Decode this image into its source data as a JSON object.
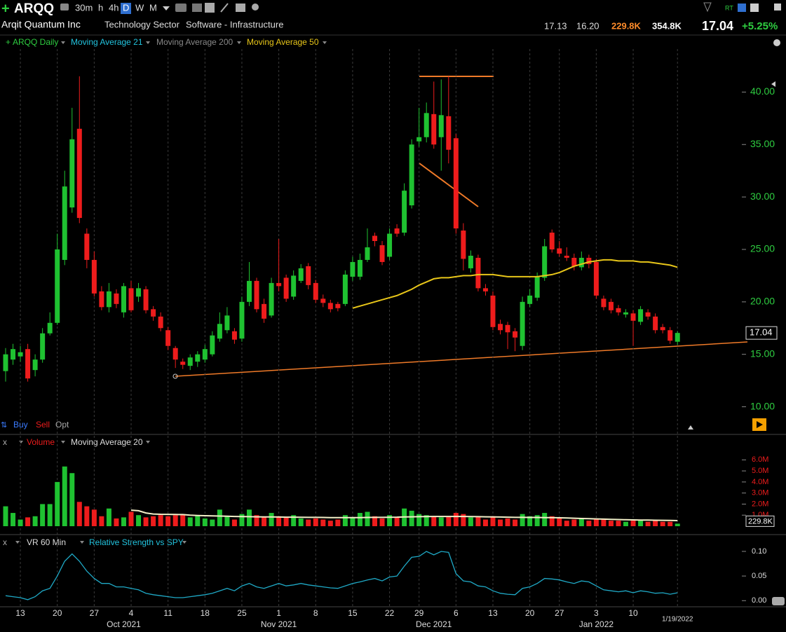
{
  "header": {
    "symbol": "ARQQ",
    "timeframes": [
      "30m",
      "h",
      "4h",
      "D",
      "W",
      "M"
    ],
    "company": "Arqit Quantum Inc",
    "sector": "Technology Sector",
    "industry": "Software - Infrastructure",
    "high_low": [
      "17.13",
      "16.20"
    ],
    "volume": "229.8K",
    "avg_volume": "354.8K",
    "last": "17.04",
    "change": "+5.25%"
  },
  "legend": {
    "ma21": "Moving Average 21",
    "ma200": "Moving Average 200"
  },
  "trade_buttons": [
    "Buy",
    "Sell",
    "Opt"
  ],
  "chart_data": [
    {
      "type": "candlestick",
      "title": "ARQQ Daily",
      "categories": [
        null,
        null,
        "13",
        null,
        null,
        null,
        null,
        "20",
        null,
        null,
        null,
        null,
        "27",
        null,
        null,
        null,
        null,
        "4",
        null,
        null,
        null,
        null,
        "11",
        null,
        null,
        null,
        null,
        "18",
        null,
        null,
        null,
        null,
        "25",
        null,
        null,
        null,
        null,
        "1",
        null,
        null,
        null,
        null,
        "8",
        null,
        null,
        null,
        null,
        "15",
        null,
        null,
        null,
        null,
        "22",
        null,
        null,
        null,
        "29",
        null,
        null,
        null,
        null,
        "6",
        null,
        null,
        null,
        null,
        "13",
        null,
        null,
        null,
        null,
        "20",
        null,
        null,
        null,
        "27",
        null,
        null,
        null,
        null,
        "3",
        null,
        null,
        null,
        null,
        "10",
        null,
        null,
        null,
        null,
        null,
        "1/19/2022"
      ],
      "months": [
        null,
        null,
        null,
        null,
        null,
        null,
        null,
        null,
        null,
        null,
        null,
        null,
        null,
        null,
        null,
        null,
        "Oct 2021",
        null,
        null,
        null,
        null,
        null,
        null,
        null,
        null,
        null,
        null,
        null,
        null,
        null,
        null,
        null,
        null,
        null,
        null,
        null,
        null,
        "Nov 2021",
        null,
        null,
        null,
        null,
        null,
        null,
        null,
        null,
        null,
        null,
        null,
        null,
        null,
        null,
        null,
        null,
        null,
        null,
        null,
        null,
        "Dec 2021",
        null,
        null,
        null,
        null,
        null,
        null,
        null,
        null,
        null,
        null,
        null,
        null,
        null,
        null,
        null,
        null,
        null,
        null,
        null,
        null,
        null,
        "Jan 2022",
        null,
        null,
        null,
        null,
        null,
        null,
        null,
        null,
        null,
        null,
        null
      ],
      "open": [
        13.4,
        14.5,
        14.8,
        15.5,
        13.5,
        14.5,
        17.0,
        18.0,
        24.0,
        29.0,
        36.5,
        26.5,
        24.0,
        21.0,
        19.5,
        20.8,
        19.0,
        21.3,
        20.5,
        21.2,
        19.3,
        18.6,
        17.3,
        15.6,
        14.3,
        13.9,
        14.3,
        14.5,
        15.0,
        16.5,
        17.3,
        17.2,
        16.5,
        20.0,
        22.0,
        19.8,
        18.7,
        21.8,
        22.3,
        20.5,
        22.0,
        23.4,
        21.8,
        20.3,
        19.9,
        19.8,
        19.8,
        22.4,
        22.4,
        24.0,
        26.3,
        25.4,
        24.3,
        27.0,
        26.6,
        29.2,
        35.3,
        35.7,
        37.9,
        35.7,
        37.7,
        35.6,
        26.8,
        23.2,
        24.2,
        21.3,
        20.6,
        17.9,
        17.8,
        17.2,
        15.8,
        19.8,
        20.4,
        22.3,
        26.6,
        25.1,
        24.4,
        24.2,
        23.3,
        24.2,
        23.8,
        20.3,
        20.0,
        19.4,
        18.8,
        18.9,
        18.1,
        19.0,
        18.6,
        17.6,
        17.3,
        16.2
      ],
      "high": [
        15.6,
        16.0,
        15.8,
        16.0,
        15.0,
        17.5,
        19.0,
        26.5,
        32.5,
        38.5,
        41.5,
        27.0,
        24.8,
        21.5,
        21.8,
        21.2,
        21.8,
        22.0,
        21.8,
        21.5,
        19.6,
        19.0,
        17.6,
        15.8,
        14.6,
        15.0,
        15.3,
        15.9,
        17.2,
        19.0,
        19.5,
        17.5,
        20.5,
        23.8,
        22.3,
        20.3,
        22.3,
        26.0,
        22.6,
        23.0,
        23.6,
        23.7,
        22.1,
        20.7,
        20.2,
        20.0,
        23.0,
        24.3,
        24.6,
        27.0,
        26.6,
        25.8,
        27.0,
        27.4,
        31.3,
        35.5,
        38.5,
        39.0,
        41.0,
        41.2,
        41.5,
        36.0,
        27.5,
        24.9,
        24.5,
        21.7,
        21.0,
        18.3,
        18.1,
        17.5,
        20.5,
        21.2,
        22.8,
        26.0,
        26.9,
        25.8,
        25.2,
        24.6,
        24.8,
        24.5,
        24.1,
        20.6,
        20.3,
        19.7,
        19.3,
        19.2,
        19.6,
        19.3,
        18.9,
        17.9,
        17.6,
        17.2
      ],
      "low": [
        12.4,
        14.0,
        14.3,
        12.4,
        12.9,
        14.2,
        16.8,
        17.8,
        23.5,
        28.5,
        27.5,
        23.2,
        20.5,
        19.2,
        19.0,
        19.4,
        18.5,
        19.0,
        20.0,
        18.9,
        18.2,
        17.2,
        15.4,
        13.7,
        13.6,
        13.5,
        13.8,
        14.2,
        14.8,
        16.2,
        17.0,
        16.0,
        16.2,
        19.6,
        19.0,
        18.0,
        18.5,
        21.0,
        20.0,
        20.2,
        21.8,
        21.2,
        19.9,
        19.5,
        19.0,
        19.1,
        19.6,
        22.0,
        22.1,
        23.8,
        25.3,
        23.5,
        24.0,
        26.2,
        26.3,
        28.9,
        34.8,
        35.2,
        34.6,
        32.5,
        33.2,
        26.5,
        23.0,
        22.8,
        21.0,
        20.6,
        17.3,
        16.9,
        15.5,
        15.3,
        15.4,
        19.5,
        20.1,
        22.0,
        24.7,
        24.3,
        23.9,
        23.0,
        23.0,
        23.2,
        20.3,
        19.2,
        18.9,
        18.7,
        18.5,
        15.8,
        17.8,
        18.3,
        17.0,
        17.0,
        16.0,
        15.9
      ],
      "close": [
        15.0,
        15.5,
        15.2,
        12.7,
        14.5,
        17.0,
        18.0,
        25.0,
        31.0,
        35.5,
        28.0,
        24.0,
        20.8,
        19.5,
        21.0,
        19.8,
        21.5,
        19.2,
        21.3,
        19.2,
        18.6,
        17.5,
        15.8,
        14.5,
        14.0,
        14.7,
        15.0,
        15.5,
        16.8,
        17.9,
        18.7,
        16.4,
        20.0,
        22.0,
        19.3,
        18.4,
        21.8,
        21.5,
        20.3,
        22.5,
        23.2,
        21.6,
        20.2,
        19.9,
        19.3,
        19.4,
        22.6,
        23.8,
        24.0,
        25.2,
        25.8,
        23.8,
        26.5,
        26.5,
        30.6,
        35.0,
        35.7,
        38.0,
        35.0,
        37.8,
        34.5,
        27.0,
        24.1,
        24.4,
        21.3,
        21.0,
        17.6,
        17.3,
        17.1,
        16.6,
        20.0,
        20.6,
        22.4,
        25.3,
        25.0,
        24.6,
        24.2,
        23.4,
        24.2,
        23.6,
        20.6,
        19.5,
        19.2,
        19.0,
        19.0,
        18.2,
        19.3,
        18.6,
        17.3,
        17.3,
        16.3,
        17.04
      ],
      "up_color": "#1fc231",
      "down_color": "#ee1c1c",
      "series": [
        {
          "name": "Moving Average 50",
          "color": "#e8c619",
          "values": [
            null,
            null,
            null,
            null,
            null,
            null,
            null,
            null,
            null,
            null,
            null,
            null,
            null,
            null,
            null,
            null,
            null,
            null,
            null,
            null,
            null,
            null,
            null,
            null,
            null,
            null,
            null,
            null,
            null,
            null,
            null,
            null,
            null,
            null,
            null,
            null,
            null,
            null,
            null,
            null,
            null,
            null,
            null,
            null,
            null,
            null,
            null,
            19.4,
            19.6,
            19.8,
            20.0,
            20.2,
            20.4,
            20.6,
            20.9,
            21.2,
            21.6,
            21.9,
            22.2,
            22.3,
            22.3,
            22.4,
            22.5,
            22.5,
            22.6,
            22.6,
            22.6,
            22.5,
            22.4,
            22.4,
            22.4,
            22.4,
            22.4,
            22.5,
            22.6,
            22.8,
            23.1,
            23.4,
            23.6,
            23.8,
            23.9,
            24.0,
            24.0,
            23.9,
            23.9,
            23.9,
            23.8,
            23.8,
            23.7,
            23.6,
            23.5,
            23.3
          ]
        }
      ],
      "ylim": [
        7.7,
        44.1
      ],
      "yticks": [
        {
          "value": 10,
          "label": "10.00"
        },
        {
          "value": 15,
          "label": "15.00"
        },
        {
          "value": 20,
          "label": "20.00"
        },
        {
          "value": 25,
          "label": "25.00"
        },
        {
          "value": 30,
          "label": "30.00"
        },
        {
          "value": 35,
          "label": "35.00"
        },
        {
          "value": 40,
          "label": "40.00"
        }
      ]
    },
    {
      "type": "bar",
      "title": "Volume",
      "values": [
        1.8,
        1.2,
        0.6,
        0.8,
        0.9,
        2.0,
        2.0,
        4.0,
        5.4,
        4.8,
        2.2,
        1.8,
        1.5,
        0.9,
        1.6,
        0.7,
        0.8,
        1.3,
        1.0,
        0.8,
        0.9,
        1.0,
        0.9,
        1.0,
        1.1,
        0.8,
        1.0,
        0.7,
        0.6,
        1.5,
        0.9,
        0.6,
        1.1,
        1.5,
        1.0,
        0.8,
        1.2,
        0.9,
        0.8,
        1.0,
        0.7,
        0.6,
        0.7,
        0.6,
        0.5,
        0.6,
        1.0,
        0.8,
        1.2,
        1.3,
        0.9,
        0.7,
        1.0,
        0.8,
        1.6,
        1.4,
        1.1,
        1.0,
        0.9,
        0.8,
        0.9,
        1.2,
        1.1,
        0.8,
        0.9,
        0.6,
        0.9,
        0.6,
        0.7,
        0.6,
        1.1,
        0.9,
        1.0,
        1.2,
        0.9,
        0.7,
        0.5,
        0.6,
        0.7,
        0.5,
        0.7,
        0.6,
        0.5,
        0.5,
        0.4,
        0.5,
        0.5,
        0.4,
        0.5,
        0.4,
        0.4,
        0.2298
      ],
      "series": [
        {
          "name": "Moving Average 20",
          "color": "#f3efc8",
          "values": [
            null,
            null,
            null,
            null,
            null,
            null,
            null,
            null,
            null,
            null,
            null,
            null,
            null,
            null,
            null,
            null,
            null,
            1.45,
            1.4,
            1.2,
            1.1,
            1.08,
            1.07,
            1.06,
            1.05,
            1.0,
            0.97,
            0.95,
            0.93,
            0.92,
            0.9,
            0.88,
            0.87,
            0.86,
            0.85,
            0.84,
            0.84,
            0.83,
            0.82,
            0.82,
            0.81,
            0.8,
            0.8,
            0.79,
            0.78,
            0.78,
            0.78,
            0.78,
            0.78,
            0.79,
            0.8,
            0.8,
            0.81,
            0.82,
            0.84,
            0.85,
            0.86,
            0.87,
            0.88,
            0.88,
            0.88,
            0.88,
            0.88,
            0.87,
            0.86,
            0.85,
            0.84,
            0.83,
            0.82,
            0.8,
            0.8,
            0.79,
            0.79,
            0.78,
            0.77,
            0.76,
            0.74,
            0.72,
            0.7,
            0.68,
            0.66,
            0.64,
            0.62,
            0.6,
            0.58,
            0.57,
            0.56,
            0.55,
            0.54,
            0.53,
            0.52,
            0.51
          ]
        }
      ],
      "ylim": [
        0,
        6.4
      ],
      "yticks": [
        {
          "value": 1,
          "label": "1.0M"
        },
        {
          "value": 2,
          "label": "2.0M"
        },
        {
          "value": 3,
          "label": "3.0M"
        },
        {
          "value": 4,
          "label": "4.0M"
        },
        {
          "value": 5,
          "label": "5.0M"
        },
        {
          "value": 6,
          "label": "6.0M"
        }
      ]
    },
    {
      "type": "line",
      "title": "VR 60 Min",
      "series": [
        {
          "name": "Relative Strength vs SPY",
          "color": "#1fa9c6",
          "values": [
            0.01,
            0.008,
            0.006,
            0.002,
            0.008,
            0.02,
            0.025,
            0.05,
            0.08,
            0.095,
            0.08,
            0.06,
            0.045,
            0.035,
            0.035,
            0.028,
            0.028,
            0.025,
            0.022,
            0.015,
            0.012,
            0.01,
            0.008,
            0.006,
            0.006,
            0.008,
            0.01,
            0.012,
            0.015,
            0.02,
            0.025,
            0.02,
            0.03,
            0.035,
            0.028,
            0.025,
            0.03,
            0.035,
            0.03,
            0.032,
            0.035,
            0.032,
            0.03,
            0.028,
            0.026,
            0.025,
            0.03,
            0.035,
            0.038,
            0.042,
            0.045,
            0.04,
            0.048,
            0.05,
            0.07,
            0.088,
            0.09,
            0.1,
            0.093,
            0.1,
            0.098,
            0.055,
            0.04,
            0.038,
            0.03,
            0.028,
            0.02,
            0.015,
            0.013,
            0.012,
            0.025,
            0.028,
            0.035,
            0.045,
            0.044,
            0.042,
            0.038,
            0.035,
            0.04,
            0.038,
            0.03,
            0.022,
            0.02,
            0.018,
            0.02,
            0.016,
            0.02,
            0.018,
            0.015,
            0.016,
            0.013,
            0.016
          ]
        }
      ],
      "ylim": [
        -0.011,
        0.117
      ],
      "yticks": [
        {
          "value": 0,
          "label": "0.00"
        },
        0.05,
        {
          "value": 0.1,
          "label": "0.10"
        }
      ]
    }
  ]
}
